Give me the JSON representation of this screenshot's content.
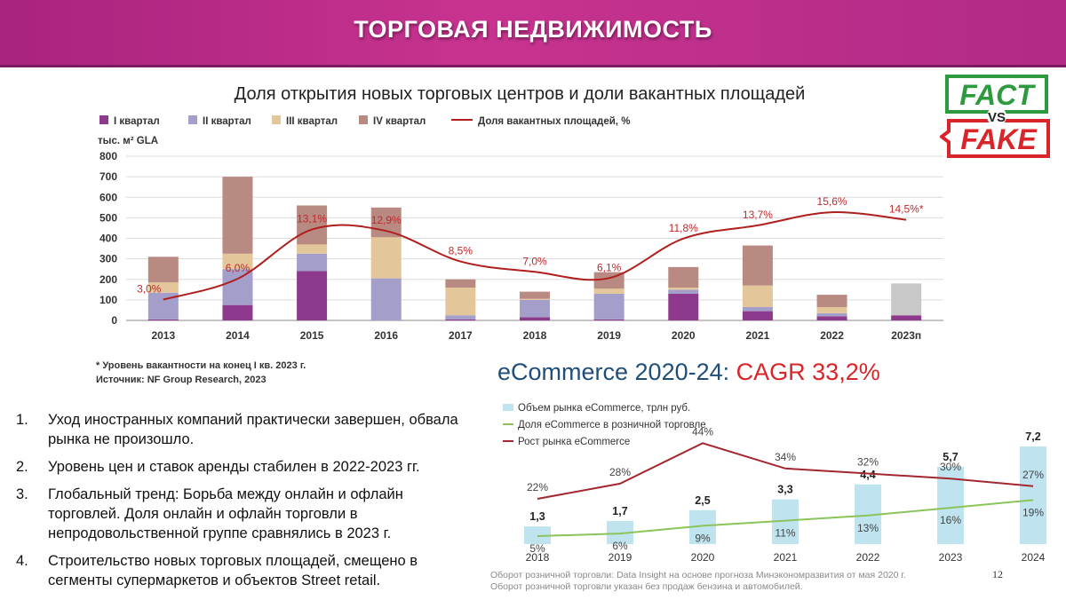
{
  "header": {
    "title": "ТОРГОВАЯ НЕДВИЖИМОСТЬ"
  },
  "logo": {
    "line1": "FACT",
    "line2": "VS",
    "line3": "FAKE"
  },
  "chart_data": [
    {
      "type": "bar",
      "stacked": true,
      "title": "Доля открытия новых торговых центров и доли вакантных площадей",
      "ylabel": "тыс. м² GLA",
      "ylim": [
        0,
        800
      ],
      "yticks": [
        "0",
        "100",
        "200",
        "300",
        "400",
        "500",
        "600",
        "700",
        "800"
      ],
      "categories": [
        "2013",
        "2014",
        "2015",
        "2016",
        "2017",
        "2018",
        "2019",
        "2020",
        "2021",
        "2022",
        "2023п"
      ],
      "series": [
        {
          "name": "I квартал",
          "color": "#8e3a8c",
          "values": [
            5,
            75,
            240,
            0,
            5,
            15,
            5,
            130,
            45,
            20,
            25
          ]
        },
        {
          "name": "II квартал",
          "color": "#a49ecb",
          "values": [
            130,
            175,
            85,
            205,
            20,
            85,
            125,
            20,
            20,
            15,
            0
          ]
        },
        {
          "name": "III квартал",
          "color": "#e3c79a",
          "values": [
            50,
            75,
            45,
            200,
            135,
            5,
            25,
            10,
            105,
            30,
            0
          ]
        },
        {
          "name": "IV квартал",
          "color": "#b98a82",
          "values": [
            125,
            375,
            190,
            145,
            40,
            35,
            80,
            100,
            195,
            60,
            0
          ]
        },
        {
          "name": "2023п",
          "color": "#c8c8c8",
          "values": [
            0,
            0,
            0,
            0,
            0,
            0,
            0,
            0,
            0,
            0,
            155
          ]
        }
      ],
      "line": {
        "name": "Доля вакантных площадей, %",
        "color": "#b01e1e",
        "values": [
          3.0,
          6.0,
          13.1,
          12.9,
          8.5,
          7.0,
          6.1,
          11.8,
          13.7,
          15.6,
          14.5
        ],
        "labels": [
          "3,0%",
          "6,0%",
          "13,1%",
          "12,9%",
          "8,5%",
          "7,0%",
          "6,1%",
          "11,8%",
          "13,7%",
          "15,6%",
          "14,5%*"
        ]
      },
      "legend": [
        "I квартал",
        "II квартал",
        "III квартал",
        "IV квартал",
        "Доля вакантных площадей, %"
      ],
      "notes": [
        "* Уровень вакантности на конец I кв. 2023 г.",
        "Источник: NF Group Research, 2023"
      ]
    },
    {
      "type": "bar",
      "title_main": "eCommerce 2020-24:",
      "title_cagr": "CAGR 33,2%",
      "categories": [
        "2018",
        "2019",
        "2020",
        "2021",
        "2022",
        "2023",
        "2024"
      ],
      "series": [
        {
          "name": "Объем рынка eCommerce, трлн руб.",
          "color": "#bfe3ef",
          "values": [
            1.3,
            1.7,
            2.5,
            3.3,
            4.4,
            5.7,
            7.2
          ],
          "labels": [
            "1,3",
            "1,7",
            "2,5",
            "3,3",
            "4,4",
            "5,7",
            "7,2"
          ]
        }
      ],
      "lines": [
        {
          "name": "Доля eCommerce в розничной торговле",
          "color": "#8bc45a",
          "values": [
            5,
            6,
            9,
            11,
            13,
            16,
            19
          ],
          "labels": [
            "5%",
            "6%",
            "9%",
            "11%",
            "13%",
            "16%",
            "19%"
          ]
        },
        {
          "name": "Рост рынка eCommerce",
          "color": "#a3272f",
          "values": [
            22,
            28,
            44,
            34,
            32,
            30,
            27
          ],
          "labels": [
            "22%",
            "28%",
            "44%",
            "34%",
            "32%",
            "30%",
            "27%"
          ]
        }
      ],
      "footnotes": [
        "Оборот розничной торговли: Data Insight на основе прогноза Минэкономразвития от мая 2020 г.",
        "Оборот розничной торговли указан без продаж бензина и автомобилей."
      ]
    }
  ],
  "bullets": [
    {
      "num": "1.",
      "text": "Уход иностранных компаний практически завершен, обвала рынка не произошло."
    },
    {
      "num": "2.",
      "text": "Уровень цен и ставок аренды стабилен в 2022-2023 гг."
    },
    {
      "num": "3.",
      "text": "Глобальный тренд: Борьба между онлайн и офлайн торговлей. Доля онлайн и офлайн торговли в непродовольственной группе сравнялись в 2023 г."
    },
    {
      "num": "4.",
      "text": "Строительство новых торговых площадей, смещено в сегменты супермаркетов и объектов Street retail."
    }
  ],
  "page_number": "12"
}
